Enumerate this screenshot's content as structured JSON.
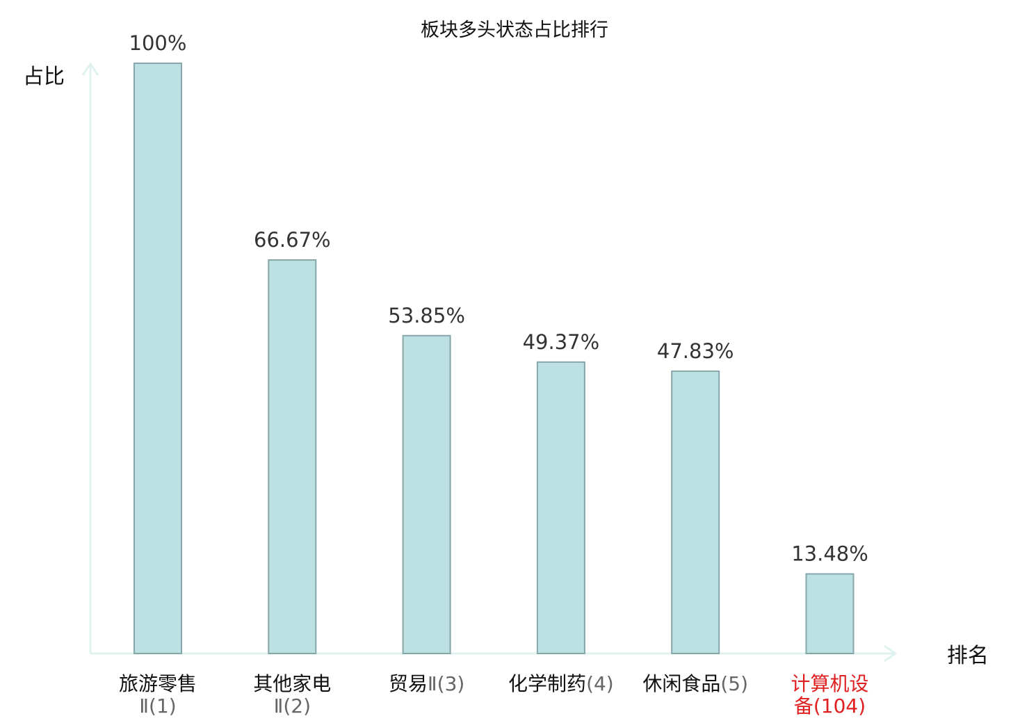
{
  "chart_data": {
    "type": "bar",
    "title": "板块多头状态占比排行",
    "ylabel": "占比",
    "xlabel": "排名",
    "ylim": [
      0,
      100
    ],
    "grid": false,
    "categories": [
      {
        "lines": [
          "旅游零售",
          "Ⅱ(1)"
        ],
        "highlight": false
      },
      {
        "lines": [
          "其他家电",
          "Ⅱ(2)"
        ],
        "highlight": false
      },
      {
        "lines": [
          "贸易Ⅱ(3)"
        ],
        "highlight": false
      },
      {
        "lines": [
          "化学制药(4)"
        ],
        "highlight": false
      },
      {
        "lines": [
          "休闲食品(5)"
        ],
        "highlight": false
      },
      {
        "lines": [
          "计算机设",
          "备(104)"
        ],
        "highlight": true
      }
    ],
    "values": [
      100,
      66.67,
      53.85,
      49.37,
      47.83,
      13.48
    ],
    "value_labels": [
      "100%",
      "66.67%",
      "53.85%",
      "49.37%",
      "47.83%",
      "13.48%"
    ],
    "colors": {
      "bar_fill": "#bde0e3",
      "bar_stroke": "#86a7aa",
      "axis": "#e0f2f0",
      "highlight": "#e02020"
    }
  }
}
